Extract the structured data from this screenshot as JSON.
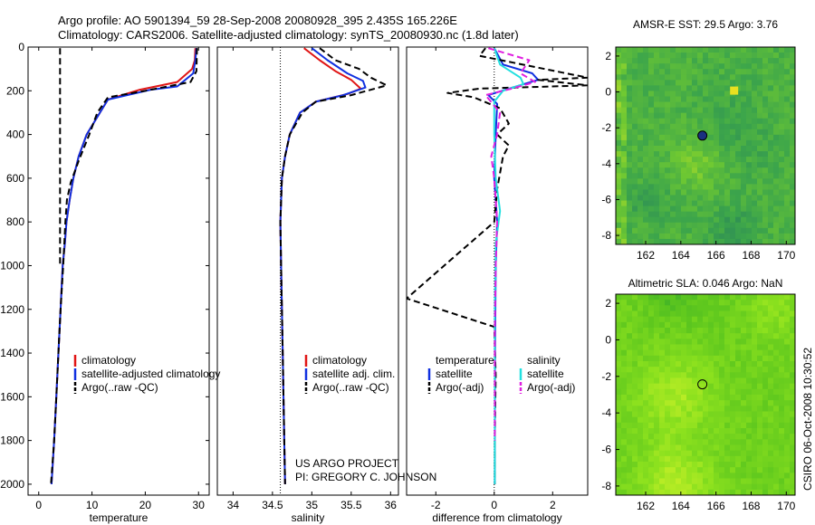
{
  "header": {
    "line1": "Argo profile: AO 5901394_59 28-Sep-2008 20080928_395 2.435S 165.226E",
    "line2": "Climatology: CARS2006. Satellite-adjusted climatology: synTS_20080930.nc (1.8d later)"
  },
  "side_stamp": "CSIRO 06-Oct-2008 10:30:52",
  "project_note": {
    "line1": "US ARGO PROJECT",
    "line2": "PI: GREGORY C. JOHNSON"
  },
  "colors": {
    "clim": "#e01515",
    "sat": "#1030e0",
    "argo": "#000000",
    "sat_sal": "#22e0e0",
    "argo_sal": "#e020e0"
  },
  "chart_data": [
    {
      "type": "line",
      "id": "temperature",
      "xlabel": "temperature",
      "ylabel": "",
      "xlim": [
        -2,
        32
      ],
      "ylim": [
        2050,
        0
      ],
      "xticks": [
        0,
        10,
        20,
        30
      ],
      "yticks": [
        0,
        200,
        400,
        600,
        800,
        1000,
        1200,
        1400,
        1600,
        1800,
        2000
      ],
      "legend": [
        "climatology",
        "satellite-adjusted climatology",
        "Argo(..raw -QC)"
      ],
      "series": [
        {
          "name": "climatology",
          "color": "#e01515",
          "dash": false,
          "points": [
            [
              29.4,
              5
            ],
            [
              29.3,
              60
            ],
            [
              28.8,
              100
            ],
            [
              26,
              160
            ],
            [
              19,
              195
            ],
            [
              13,
              240
            ],
            [
              11.5,
              300
            ],
            [
              9,
              400
            ],
            [
              7.5,
              500
            ],
            [
              6.5,
              600
            ],
            [
              5.8,
              700
            ],
            [
              5.2,
              800
            ],
            [
              4.9,
              900
            ],
            [
              4.5,
              1000
            ],
            [
              4.1,
              1200
            ],
            [
              3.7,
              1400
            ],
            [
              3.3,
              1600
            ],
            [
              2.9,
              1800
            ],
            [
              2.4,
              2000
            ]
          ]
        },
        {
          "name": "satellite-adjusted climatology",
          "color": "#1030e0",
          "dash": false,
          "points": [
            [
              29.6,
              5
            ],
            [
              29.4,
              60
            ],
            [
              29,
              120
            ],
            [
              26,
              180
            ],
            [
              21,
              195
            ],
            [
              13,
              240
            ],
            [
              11.5,
              300
            ],
            [
              9,
              400
            ],
            [
              7.5,
              500
            ],
            [
              6.5,
              600
            ],
            [
              5.8,
              700
            ],
            [
              5.2,
              800
            ],
            [
              4.9,
              900
            ],
            [
              4.5,
              1000
            ],
            [
              4.1,
              1200
            ],
            [
              3.7,
              1400
            ],
            [
              3.3,
              1600
            ],
            [
              2.9,
              1800
            ],
            [
              2.4,
              2000
            ]
          ]
        },
        {
          "name": "Argo(..raw -QC)",
          "color": "#000000",
          "dash": true,
          "points": [
            [
              29.7,
              5
            ],
            [
              29.6,
              110
            ],
            [
              28.5,
              160
            ],
            [
              20,
              200
            ],
            [
              13,
              230
            ],
            [
              11,
              300
            ],
            [
              9.5,
              400
            ],
            [
              7.5,
              520
            ],
            [
              6,
              620
            ],
            [
              5.3,
              700
            ],
            [
              5,
              800
            ],
            [
              4.6,
              1000
            ],
            [
              4.1,
              1200
            ],
            [
              3.7,
              1400
            ],
            [
              3.3,
              1600
            ],
            [
              2.9,
              1800
            ],
            [
              2.3,
              2000
            ]
          ]
        },
        {
          "name": "argo-surface-spike",
          "color": "#000000",
          "dash": true,
          "points": [
            [
              4,
              5
            ],
            [
              4,
              300
            ],
            [
              4,
              600
            ],
            [
              4,
              1000
            ]
          ]
        }
      ]
    },
    {
      "type": "line",
      "id": "salinity",
      "xlabel": "salinity",
      "ylabel": "",
      "xlim": [
        33.8,
        36.1
      ],
      "ylim": [
        2050,
        0
      ],
      "xticks": [
        34,
        34.5,
        35,
        35.5,
        36
      ],
      "yticks": [],
      "refline": 34.6,
      "legend": [
        "climatology",
        "satellite adj. clim.",
        "Argo(..raw -QC)"
      ],
      "series": [
        {
          "name": "climatology",
          "color": "#e01515",
          "dash": false,
          "points": [
            [
              34.9,
              5
            ],
            [
              35.1,
              60
            ],
            [
              35.3,
              110
            ],
            [
              35.5,
              150
            ],
            [
              35.62,
              190
            ],
            [
              35.45,
              215
            ],
            [
              35.05,
              250
            ],
            [
              34.85,
              300
            ],
            [
              34.72,
              400
            ],
            [
              34.66,
              500
            ],
            [
              34.62,
              600
            ],
            [
              34.6,
              800
            ],
            [
              34.61,
              1000
            ],
            [
              34.63,
              1400
            ],
            [
              34.65,
              1800
            ],
            [
              34.66,
              2000
            ]
          ]
        },
        {
          "name": "satellite adj. clim.",
          "color": "#1030e0",
          "dash": false,
          "points": [
            [
              35.0,
              5
            ],
            [
              35.2,
              60
            ],
            [
              35.45,
              120
            ],
            [
              35.65,
              155
            ],
            [
              35.68,
              185
            ],
            [
              35.4,
              220
            ],
            [
              35.05,
              250
            ],
            [
              34.85,
              300
            ],
            [
              34.72,
              400
            ],
            [
              34.66,
              500
            ],
            [
              34.62,
              600
            ],
            [
              34.6,
              800
            ],
            [
              34.61,
              1000
            ],
            [
              34.63,
              1400
            ],
            [
              34.65,
              1800
            ],
            [
              34.66,
              2000
            ]
          ]
        },
        {
          "name": "Argo(..raw -QC)",
          "color": "#000000",
          "dash": true,
          "points": [
            [
              35.1,
              5
            ],
            [
              35.3,
              60
            ],
            [
              35.6,
              100
            ],
            [
              35.75,
              140
            ],
            [
              35.95,
              175
            ],
            [
              35.5,
              220
            ],
            [
              35.05,
              250
            ],
            [
              34.88,
              300
            ],
            [
              34.72,
              400
            ],
            [
              34.66,
              500
            ],
            [
              34.62,
              600
            ],
            [
              34.6,
              800
            ],
            [
              34.61,
              1000
            ],
            [
              34.63,
              1400
            ],
            [
              34.65,
              1800
            ],
            [
              34.66,
              2000
            ]
          ]
        }
      ]
    },
    {
      "type": "line",
      "id": "difference",
      "xlabel": "difference from climatology",
      "ylabel": "",
      "xlim": [
        -3,
        3.2
      ],
      "ylim": [
        2050,
        0
      ],
      "xticks": [
        -2,
        0,
        2
      ],
      "yticks": [],
      "refline": 0,
      "legend_temperature": [
        "temperature",
        "satellite",
        "Argo(-adj)"
      ],
      "legend_salinity": [
        "salinity",
        "satellite",
        "Argo(-adj)"
      ],
      "series": [
        {
          "name": "temperature satellite",
          "color": "#1030e0",
          "dash": false,
          "points": [
            [
              0,
              5
            ],
            [
              0.3,
              80
            ],
            [
              1.3,
              120
            ],
            [
              1.5,
              150
            ],
            [
              0.5,
              190
            ],
            [
              -0.2,
              220
            ],
            [
              0.1,
              260
            ],
            [
              0.05,
              400
            ],
            [
              0,
              600
            ],
            [
              0.1,
              800
            ],
            [
              0.05,
              1000
            ],
            [
              0.03,
              1400
            ],
            [
              0.02,
              2000
            ]
          ]
        },
        {
          "name": "temperature Argo(-adj)",
          "color": "#000000",
          "dash": true,
          "points": [
            [
              -0.3,
              5
            ],
            [
              -0.5,
              40
            ],
            [
              3.2,
              140
            ],
            [
              1.5,
              150
            ],
            [
              3.2,
              175
            ],
            [
              -0.5,
              190
            ],
            [
              -1.6,
              210
            ],
            [
              -0.7,
              230
            ],
            [
              0.2,
              280
            ],
            [
              0.5,
              350
            ],
            [
              0.1,
              400
            ],
            [
              0.5,
              450
            ],
            [
              0.3,
              500
            ],
            [
              0.1,
              650
            ],
            [
              0,
              800
            ],
            [
              -3,
              1150
            ],
            [
              0,
              1280
            ],
            [
              0.05,
              1500
            ],
            [
              0.02,
              1800
            ],
            [
              0.02,
              2000
            ]
          ]
        },
        {
          "name": "salinity satellite",
          "color": "#22e0e0",
          "dash": false,
          "points": [
            [
              0,
              5
            ],
            [
              0.2,
              80
            ],
            [
              0.9,
              140
            ],
            [
              1,
              170
            ],
            [
              0.3,
              200
            ],
            [
              0,
              250
            ],
            [
              0,
              400
            ],
            [
              0.05,
              600
            ],
            [
              0.2,
              750
            ],
            [
              0.05,
              900
            ],
            [
              0.02,
              1200
            ],
            [
              0.02,
              2000
            ]
          ]
        },
        {
          "name": "salinity Argo(-adj)",
          "color": "#e020e0",
          "dash": true,
          "points": [
            [
              -0.2,
              5
            ],
            [
              1.2,
              60
            ],
            [
              0.9,
              120
            ],
            [
              1.4,
              160
            ],
            [
              0.6,
              190
            ],
            [
              -0.3,
              220
            ],
            [
              0.2,
              300
            ],
            [
              0.1,
              400
            ],
            [
              -0.1,
              500
            ],
            [
              0,
              600
            ],
            [
              0.1,
              800
            ],
            [
              0.05,
              1000
            ],
            [
              0.02,
              1300
            ],
            [
              0.02,
              1800
            ]
          ]
        }
      ]
    },
    {
      "type": "heatmap",
      "id": "sst",
      "title": "AMSR-E SST: 29.5 Argo: 3.76",
      "xlim": [
        160.3,
        170.5
      ],
      "ylim": [
        -8.5,
        2.5
      ],
      "xticks": [
        162,
        164,
        166,
        168,
        170
      ],
      "yticks": [
        2,
        0,
        -2,
        -4,
        -6,
        -8
      ],
      "marker": [
        165.226,
        -2.435
      ],
      "seed": 11,
      "palette": "sst"
    },
    {
      "type": "heatmap",
      "id": "sla",
      "title": "Altimetric SLA: 0.046 Argo: NaN",
      "xlim": [
        160.3,
        170.5
      ],
      "ylim": [
        -8.5,
        2.5
      ],
      "xticks": [
        162,
        164,
        166,
        168,
        170
      ],
      "yticks": [
        2,
        0,
        -2,
        -4,
        -6,
        -8
      ],
      "marker": [
        165.226,
        -2.435
      ],
      "seed": 29,
      "palette": "sla"
    }
  ]
}
